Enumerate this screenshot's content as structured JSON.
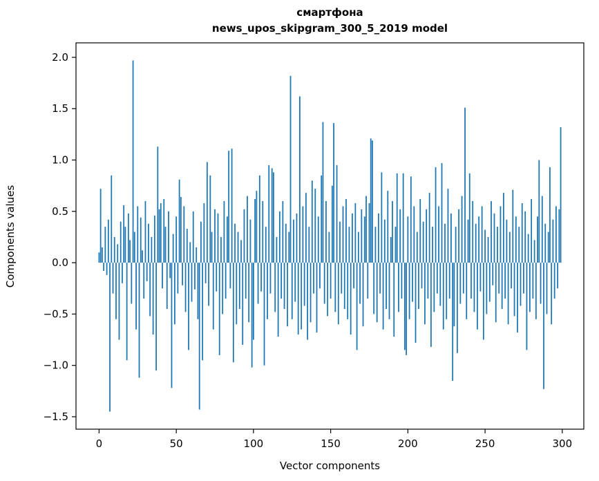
{
  "chart_data": {
    "type": "bar",
    "title": "смартфона",
    "subtitle": "news_upos_skipgram_300_5_2019 model",
    "xlabel": "Vector components",
    "ylabel": "Components values",
    "bar_color": "#1f77b4",
    "axis_color": "#000000",
    "xlim": [
      -14.95,
      313.95
    ],
    "ylim": [
      -1.621,
      2.141
    ],
    "xticks": [
      0,
      50,
      100,
      150,
      200,
      250,
      300
    ],
    "yticks": [
      2.0,
      1.5,
      1.0,
      0.5,
      0.0,
      -0.5,
      -1.0,
      -1.5
    ],
    "grid": false,
    "legend": null,
    "values": [
      0.1,
      0.72,
      0.15,
      -0.08,
      0.35,
      -0.12,
      0.42,
      -1.45,
      0.85,
      -0.3,
      0.25,
      -0.55,
      0.18,
      -0.75,
      0.4,
      -0.2,
      0.56,
      0.35,
      -0.95,
      0.48,
      0.22,
      -0.4,
      1.97,
      0.3,
      -0.65,
      0.55,
      -1.12,
      0.44,
      0.12,
      -0.35,
      0.6,
      -0.18,
      0.38,
      -0.52,
      0.25,
      -0.7,
      0.46,
      -1.05,
      1.13,
      0.52,
      0.58,
      -0.25,
      0.62,
      0.35,
      -0.45,
      0.5,
      -0.15,
      -1.22,
      0.28,
      -0.6,
      0.45,
      -0.3,
      0.81,
      0.64,
      -0.22,
      0.55,
      -0.48,
      0.33,
      -0.85,
      0.2,
      -0.38,
      0.5,
      -0.26,
      0.15,
      -0.55,
      -1.43,
      0.4,
      -0.95,
      0.58,
      -0.2,
      0.98,
      -0.42,
      0.85,
      0.3,
      -0.65,
      0.52,
      -0.28,
      0.48,
      -0.9,
      0.25,
      -0.5,
      0.6,
      -0.35,
      0.45,
      1.09,
      -0.25,
      1.11,
      -0.97,
      0.38,
      -0.6,
      0.3,
      -0.45,
      0.22,
      -0.8,
      0.52,
      -0.35,
      0.65,
      -0.58,
      0.42,
      -1.02,
      -0.75,
      0.62,
      0.7,
      -0.4,
      0.85,
      -0.28,
      0.6,
      -1.0,
      0.35,
      -0.55,
      0.95,
      -0.3,
      0.92,
      0.88,
      -0.48,
      0.25,
      -0.72,
      0.5,
      -0.35,
      0.6,
      -0.45,
      0.38,
      -0.62,
      0.3,
      1.82,
      -0.55,
      0.42,
      -0.38,
      0.48,
      -0.7,
      1.62,
      -0.65,
      0.55,
      -0.42,
      0.68,
      -0.75,
      0.35,
      -0.58,
      0.8,
      -0.3,
      0.72,
      -0.68,
      0.45,
      -0.25,
      0.85,
      1.37,
      -0.4,
      0.6,
      -0.52,
      0.3,
      -0.35,
      0.75,
      1.36,
      -0.48,
      0.95,
      -0.6,
      0.4,
      -0.3,
      0.55,
      -0.45,
      0.62,
      -0.55,
      0.35,
      -0.7,
      0.48,
      -0.25,
      0.58,
      -0.85,
      0.3,
      -0.4,
      0.52,
      -0.62,
      0.45,
      0.65,
      -0.35,
      0.58,
      1.21,
      1.19,
      -0.5,
      0.35,
      -0.58,
      0.48,
      -0.3,
      0.88,
      -0.65,
      0.42,
      -0.45,
      0.7,
      -0.55,
      0.25,
      0.6,
      -0.72,
      0.35,
      0.87,
      -0.48,
      0.52,
      -0.35,
      0.87,
      -0.85,
      -0.9,
      0.45,
      -0.55,
      0.84,
      -0.38,
      0.55,
      -0.78,
      0.3,
      -0.45,
      0.62,
      -0.25,
      0.4,
      -0.6,
      0.52,
      -0.35,
      0.68,
      -0.82,
      0.35,
      -0.48,
      0.93,
      -0.3,
      0.55,
      -0.42,
      0.97,
      -0.65,
      0.38,
      -0.55,
      0.72,
      -0.35,
      0.48,
      -1.15,
      -0.62,
      0.35,
      -0.88,
      0.52,
      -0.4,
      0.65,
      -0.3,
      1.51,
      -0.55,
      0.42,
      0.87,
      -0.35,
      0.6,
      -0.48,
      0.38,
      -0.65,
      0.45,
      -0.28,
      0.55,
      -0.75,
      0.32,
      -0.5,
      0.25,
      -0.38,
      0.6,
      -0.22,
      0.48,
      -0.58,
      0.35,
      -0.3,
      0.55,
      -0.45,
      0.68,
      -0.35,
      0.42,
      -0.6,
      0.3,
      -0.25,
      0.71,
      -0.52,
      0.45,
      -0.68,
      0.35,
      -0.42,
      0.58,
      -0.3,
      0.5,
      -0.85,
      0.28,
      -0.48,
      0.62,
      -0.35,
      0.22,
      -0.55,
      0.45,
      1.0,
      -0.4,
      0.65,
      -1.23,
      0.38,
      -0.5,
      0.3,
      0.93,
      -0.6,
      0.42,
      -0.35,
      0.55,
      -0.25,
      0.52,
      1.32
    ]
  }
}
